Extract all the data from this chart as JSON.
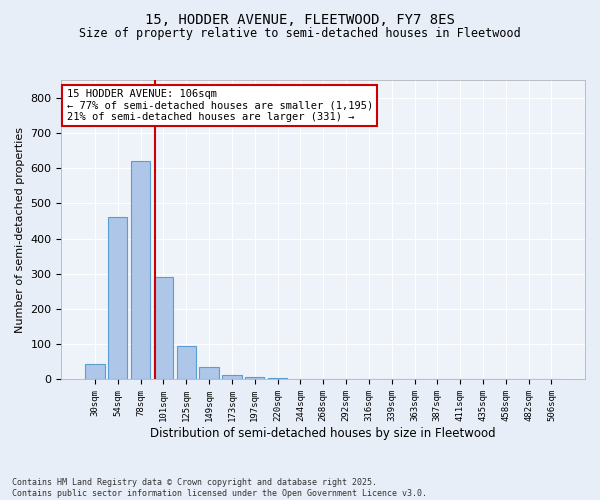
{
  "title1": "15, HODDER AVENUE, FLEETWOOD, FY7 8ES",
  "title2": "Size of property relative to semi-detached houses in Fleetwood",
  "xlabel": "Distribution of semi-detached houses by size in Fleetwood",
  "ylabel": "Number of semi-detached properties",
  "categories": [
    "30sqm",
    "54sqm",
    "78sqm",
    "101sqm",
    "125sqm",
    "149sqm",
    "173sqm",
    "197sqm",
    "220sqm",
    "244sqm",
    "268sqm",
    "292sqm",
    "316sqm",
    "339sqm",
    "363sqm",
    "387sqm",
    "411sqm",
    "435sqm",
    "458sqm",
    "482sqm",
    "506sqm"
  ],
  "values": [
    45,
    460,
    620,
    291,
    94,
    36,
    14,
    8,
    5,
    0,
    0,
    0,
    0,
    0,
    0,
    0,
    0,
    0,
    0,
    0,
    0
  ],
  "bar_color": "#aec6e8",
  "bar_edge_color": "#5a9fd4",
  "vline_color": "#cc0000",
  "annotation_title": "15 HODDER AVENUE: 106sqm",
  "annotation_line1": "← 77% of semi-detached houses are smaller (1,195)",
  "annotation_line2": "21% of semi-detached houses are larger (331) →",
  "annotation_box_color": "#cc0000",
  "ylim": [
    0,
    850
  ],
  "yticks": [
    0,
    100,
    200,
    300,
    400,
    500,
    600,
    700,
    800
  ],
  "footer1": "Contains HM Land Registry data © Crown copyright and database right 2025.",
  "footer2": "Contains public sector information licensed under the Open Government Licence v3.0.",
  "bg_color": "#e8eef7",
  "plot_bg_color": "#eef2f9"
}
